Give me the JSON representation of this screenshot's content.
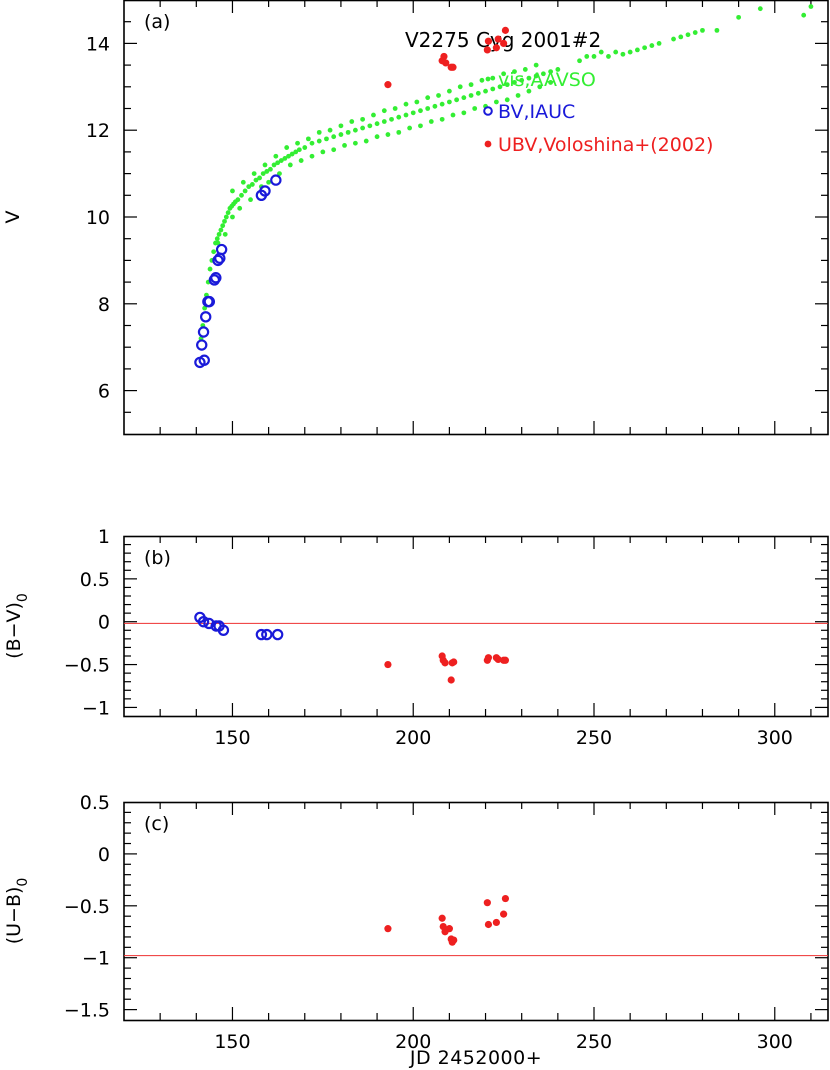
{
  "chart_data": [
    {
      "type": "scatter",
      "panel_label": "(a)",
      "title": "V2275 Cyg 2001#2",
      "ylabel": "V",
      "xlim": [
        120,
        315
      ],
      "ylim": [
        15,
        5
      ],
      "x_ticks": [
        150,
        200,
        250,
        300
      ],
      "y_ticks": [
        6,
        8,
        10,
        12,
        14
      ],
      "legend_position": "top-right",
      "series": [
        {
          "name": "vis,AAVSO",
          "color": "#33ee33",
          "marker": "dot",
          "points": [
            [
              141.3,
              7.2
            ],
            [
              141.8,
              7.5
            ],
            [
              142.3,
              7.9
            ],
            [
              142.8,
              8.2
            ],
            [
              143.3,
              8.5
            ],
            [
              143.8,
              8.8
            ],
            [
              144.3,
              9.0
            ],
            [
              144.8,
              9.2
            ],
            [
              145.3,
              9.4
            ],
            [
              145.8,
              9.5
            ],
            [
              146.3,
              9.6
            ],
            [
              146.8,
              9.7
            ],
            [
              147.3,
              9.8
            ],
            [
              147.8,
              9.9
            ],
            [
              148.3,
              10.0
            ],
            [
              148.8,
              10.1
            ],
            [
              149.3,
              10.2
            ],
            [
              149.8,
              10.25
            ],
            [
              150.3,
              10.3
            ],
            [
              150.8,
              10.35
            ],
            [
              151.5,
              10.4
            ],
            [
              152.5,
              10.5
            ],
            [
              153.5,
              10.6
            ],
            [
              154.5,
              10.7
            ],
            [
              155.5,
              10.75
            ],
            [
              156.5,
              10.85
            ],
            [
              157.5,
              10.9
            ],
            [
              158.5,
              11.0
            ],
            [
              159.5,
              11.05
            ],
            [
              160.5,
              11.1
            ],
            [
              161.5,
              11.2
            ],
            [
              162.5,
              11.25
            ],
            [
              163.5,
              11.3
            ],
            [
              164.5,
              11.35
            ],
            [
              165.5,
              11.4
            ],
            [
              166.5,
              11.45
            ],
            [
              167.5,
              11.5
            ],
            [
              168.5,
              11.55
            ],
            [
              170,
              11.6
            ],
            [
              172,
              11.7
            ],
            [
              174,
              11.75
            ],
            [
              176,
              11.8
            ],
            [
              178,
              11.85
            ],
            [
              180,
              11.9
            ],
            [
              182,
              11.95
            ],
            [
              184,
              12.0
            ],
            [
              186,
              12.05
            ],
            [
              188,
              12.1
            ],
            [
              190,
              12.15
            ],
            [
              192,
              12.2
            ],
            [
              194,
              12.25
            ],
            [
              196,
              12.3
            ],
            [
              198,
              12.35
            ],
            [
              200,
              12.4
            ],
            [
              202,
              12.45
            ],
            [
              204,
              12.5
            ],
            [
              206,
              12.55
            ],
            [
              208,
              12.6
            ],
            [
              210,
              12.65
            ],
            [
              212,
              12.7
            ],
            [
              214,
              12.75
            ],
            [
              216,
              12.8
            ],
            [
              218,
              12.85
            ],
            [
              220,
              12.9
            ],
            [
              222,
              12.95
            ],
            [
              224,
              13.0
            ],
            [
              226,
              13.05
            ],
            [
              228,
              13.1
            ],
            [
              230,
              13.15
            ],
            [
              232,
              13.2
            ],
            [
              234,
              13.25
            ],
            [
              236,
              13.3
            ],
            [
              238,
              13.35
            ],
            [
              240,
              13.4
            ],
            [
              246,
              13.6
            ],
            [
              248,
              13.7
            ],
            [
              250,
              13.7
            ],
            [
              252,
              13.8
            ],
            [
              254,
              13.7
            ],
            [
              256,
              13.8
            ],
            [
              258,
              13.75
            ],
            [
              260,
              13.8
            ],
            [
              262,
              13.85
            ],
            [
              264,
              13.9
            ],
            [
              266,
              13.95
            ],
            [
              268,
              14.0
            ],
            [
              272,
              14.1
            ],
            [
              274,
              14.15
            ],
            [
              276,
              14.2
            ],
            [
              278,
              14.25
            ],
            [
              280,
              14.3
            ],
            [
              284,
              14.3
            ],
            [
              290,
              14.6
            ],
            [
              296,
              14.8
            ],
            [
              308,
              14.65
            ],
            [
              310,
              14.85
            ],
            [
              146,
              9.4
            ],
            [
              148,
              9.6
            ],
            [
              150,
              10.0
            ],
            [
              152,
              10.2
            ],
            [
              155,
              10.4
            ],
            [
              158,
              10.7
            ],
            [
              160,
              10.8
            ],
            [
              163,
              11.0
            ],
            [
              166,
              11.2
            ],
            [
              169,
              11.3
            ],
            [
              172,
              11.4
            ],
            [
              175,
              11.5
            ],
            [
              178,
              11.55
            ],
            [
              181,
              11.65
            ],
            [
              184,
              11.7
            ],
            [
              187,
              11.75
            ],
            [
              190,
              11.85
            ],
            [
              193,
              11.9
            ],
            [
              196,
              11.95
            ],
            [
              199,
              12.05
            ],
            [
              202,
              12.1
            ],
            [
              205,
              12.2
            ],
            [
              208,
              12.25
            ],
            [
              211,
              12.35
            ],
            [
              214,
              12.4
            ],
            [
              217,
              12.5
            ],
            [
              220,
              12.55
            ],
            [
              223,
              12.65
            ],
            [
              226,
              12.7
            ],
            [
              229,
              12.8
            ],
            [
              232,
              12.9
            ],
            [
              235,
              13.0
            ],
            [
              238,
              13.1
            ],
            [
              150,
              10.6
            ],
            [
              153,
              10.8
            ],
            [
              156,
              11.0
            ],
            [
              159,
              11.2
            ],
            [
              162,
              11.4
            ],
            [
              165,
              11.6
            ],
            [
              168,
              11.7
            ],
            [
              171,
              11.8
            ],
            [
              174,
              11.95
            ],
            [
              177,
              12.0
            ],
            [
              180,
              12.1
            ],
            [
              183,
              12.2
            ],
            [
              186,
              12.25
            ],
            [
              189,
              12.35
            ],
            [
              192,
              12.45
            ],
            [
              195,
              12.5
            ],
            [
              198,
              12.6
            ],
            [
              201,
              12.65
            ],
            [
              204,
              12.75
            ],
            [
              207,
              12.8
            ],
            [
              210,
              12.9
            ],
            [
              213,
              13.0
            ],
            [
              216,
              13.05
            ],
            [
              219,
              13.15
            ],
            [
              222,
              13.2
            ],
            [
              225,
              13.3
            ],
            [
              228,
              13.35
            ],
            [
              231,
              13.4
            ],
            [
              234,
              13.5
            ]
          ]
        },
        {
          "name": "BV,IAUC",
          "color": "#1a1ad9",
          "marker": "circle",
          "points": [
            [
              141.0,
              6.65
            ],
            [
              142.2,
              6.7
            ],
            [
              141.5,
              7.05
            ],
            [
              142.0,
              7.35
            ],
            [
              142.6,
              7.7
            ],
            [
              143.2,
              8.05
            ],
            [
              143.6,
              8.05
            ],
            [
              145.0,
              8.55
            ],
            [
              145.4,
              8.6
            ],
            [
              146.0,
              9.0
            ],
            [
              146.5,
              9.05
            ],
            [
              147.0,
              9.25
            ],
            [
              158.0,
              10.5
            ],
            [
              159.0,
              10.6
            ],
            [
              162.0,
              10.85
            ]
          ]
        },
        {
          "name": "UBV,Voloshina+(2002)",
          "color": "#ee2020",
          "marker": "dot",
          "points": [
            [
              193,
              13.05
            ],
            [
              208,
              13.6
            ],
            [
              208.5,
              13.7
            ],
            [
              209,
              13.55
            ],
            [
              210.5,
              13.45
            ],
            [
              211,
              13.45
            ],
            [
              220.5,
              13.85
            ],
            [
              220.8,
              14.05
            ],
            [
              223,
              13.9
            ],
            [
              223.5,
              14.1
            ],
            [
              225,
              14.0
            ],
            [
              225.5,
              14.3
            ]
          ]
        }
      ]
    },
    {
      "type": "scatter",
      "panel_label": "(b)",
      "ylabel_main": "(B−V)",
      "ylabel_sub": "0",
      "xlim": [
        120,
        315
      ],
      "ylim": [
        1,
        -1.1
      ],
      "x_ticks": [
        150,
        200,
        250,
        300
      ],
      "y_ticks": [
        -1,
        -0.5,
        0,
        0.5,
        1
      ],
      "y_tick_labels": [
        "−1",
        "−0.5",
        "0",
        "0.5",
        "1"
      ],
      "ref_line": -0.02,
      "series": [
        {
          "name": "BV,IAUC",
          "color": "#1a1ad9",
          "marker": "circle",
          "points": [
            [
              141,
              0.05
            ],
            [
              142,
              0.0
            ],
            [
              143.5,
              -0.02
            ],
            [
              145.5,
              -0.05
            ],
            [
              146.3,
              -0.05
            ],
            [
              147.5,
              -0.1
            ],
            [
              158,
              -0.15
            ],
            [
              159.5,
              -0.15
            ],
            [
              162.5,
              -0.15
            ]
          ]
        },
        {
          "name": "UBV,Voloshina+(2002)",
          "color": "#ee2020",
          "marker": "dot",
          "points": [
            [
              193,
              -0.5
            ],
            [
              208,
              -0.4
            ],
            [
              208.3,
              -0.45
            ],
            [
              208.8,
              -0.48
            ],
            [
              210.5,
              -0.68
            ],
            [
              210.8,
              -0.48
            ],
            [
              211.2,
              -0.47
            ],
            [
              220.5,
              -0.45
            ],
            [
              220.8,
              -0.42
            ],
            [
              223,
              -0.42
            ],
            [
              223.5,
              -0.44
            ],
            [
              225,
              -0.45
            ],
            [
              225.5,
              -0.45
            ]
          ]
        }
      ]
    },
    {
      "type": "scatter",
      "panel_label": "(c)",
      "ylabel_main": "(U−B)",
      "ylabel_sub": "0",
      "xlabel": "JD 2452000+",
      "xlim": [
        120,
        315
      ],
      "ylim": [
        0.5,
        -1.6
      ],
      "x_ticks": [
        150,
        200,
        250,
        300
      ],
      "y_ticks": [
        -1.5,
        -1,
        -0.5,
        0,
        0.5
      ],
      "y_tick_labels": [
        "−1.5",
        "−1",
        "−0.5",
        "0",
        "0.5"
      ],
      "ref_line": -0.98,
      "series": [
        {
          "name": "UBV,Voloshina+(2002)",
          "color": "#ee2020",
          "marker": "dot",
          "points": [
            [
              193,
              -0.72
            ],
            [
              208,
              -0.62
            ],
            [
              208.3,
              -0.7
            ],
            [
              208.8,
              -0.75
            ],
            [
              210,
              -0.72
            ],
            [
              210.5,
              -0.82
            ],
            [
              210.8,
              -0.85
            ],
            [
              211.2,
              -0.83
            ],
            [
              220.5,
              -0.47
            ],
            [
              220.8,
              -0.68
            ],
            [
              223,
              -0.66
            ],
            [
              225,
              -0.58
            ],
            [
              225.5,
              -0.43
            ]
          ]
        }
      ]
    }
  ]
}
